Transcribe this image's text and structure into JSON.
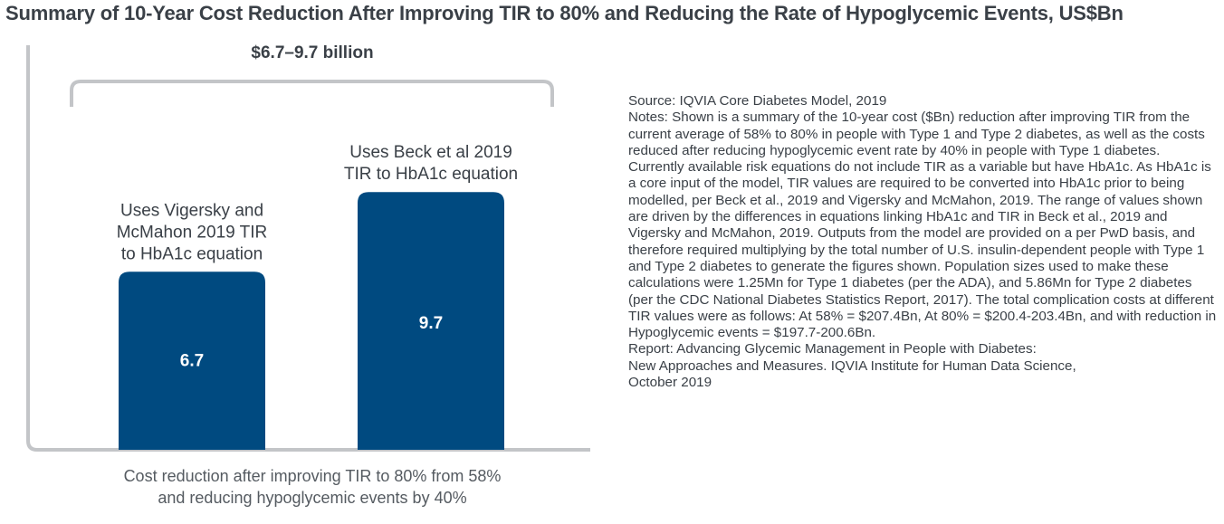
{
  "title": "Summary of 10-Year Cost Reduction After Improving TIR to 80% and Reducing the Rate of Hypoglycemic Events, US$Bn",
  "chart_data": {
    "type": "bar",
    "categories": [
      "Uses Vigersky and McMahon 2019 TIR to HbA1c equation",
      "Uses Beck et al 2019 TIR to HbA1c equation"
    ],
    "category_lines": [
      [
        "Uses Vigersky and",
        "McMahon 2019 TIR",
        "to HbA1c equation"
      ],
      [
        "Uses Beck et al 2019",
        "TIR to HbA1c equation"
      ]
    ],
    "values": [
      6.7,
      9.7
    ],
    "value_labels": [
      "6.7",
      "9.7"
    ],
    "range_annotation": "$6.7–9.7 billion",
    "xlabel_lines": [
      "Cost reduction after improving TIR to 80% from 58%",
      "and reducing hypoglycemic events by 40%"
    ],
    "ylim": [
      0,
      12.5
    ],
    "bar_color": "#004a80",
    "axis_color": "#c3c5c8",
    "bracket_color": "#c3c5c8",
    "grid": false,
    "legend": "none"
  },
  "source": "Source: IQVIA Core Diabetes Model, 2019",
  "notes": "Notes: Shown is a summary of the 10-year cost ($Bn) reduction after improving TIR from the current average of 58% to 80% in people with Type 1 and Type 2 diabetes, as well as the costs reduced after reducing hypoglycemic event rate by 40% in people with Type 1 diabetes. Currently available risk equations do not include TIR as a variable but have HbA1c. As HbA1c is a core input of the model, TIR values are required to be converted into HbA1c prior to being modelled, per Beck et al., 2019 and Vigersky and McMahon, 2019. The range of values shown are driven by the differences in equations linking HbA1c and TIR in Beck et al., 2019 and Vigersky and McMahon, 2019. Outputs from the model are provided on a per PwD basis, and therefore required multiplying by the total number of U.S. insulin-dependent people with Type 1 and Type 2 diabetes to generate the figures shown. Population sizes used to make these calculations were 1.25Mn for Type 1 diabetes (per the ADA), and 5.86Mn for Type 2 diabetes (per the CDC National Diabetes Statistics Report, 2017). The total complication costs at different TIR values were as follows: At 58% = $207.4Bn, At 80% = $200.4-203.4Bn, and with reduction in Hypoglycemic events = $197.7-200.6Bn.",
  "report_lines": [
    "Report: Advancing Glycemic Management in People with Diabetes:",
    "New Approaches and Measures. IQVIA Institute for Human Data Science,",
    "October 2019"
  ]
}
